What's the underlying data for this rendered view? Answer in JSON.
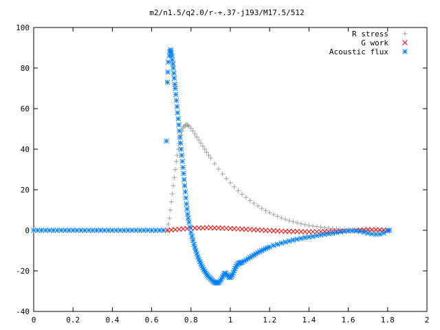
{
  "chart_data": {
    "type": "scatter",
    "title": "m2/n1.5/q2.0/r-+.37-j193/M17.5/512",
    "xlabel": "",
    "ylabel": "",
    "xlim": [
      0,
      2
    ],
    "ylim": [
      -40,
      100
    ],
    "xticks": [
      0,
      0.2,
      0.4,
      0.6,
      0.8,
      1,
      1.2,
      1.4,
      1.6,
      1.8,
      2
    ],
    "xtick_labels": [
      "0",
      "0.2",
      "0.4",
      "0.6",
      "0.8",
      "1",
      "1.2",
      "1.4",
      "1.6",
      "1.8",
      "2"
    ],
    "yticks": [
      -40,
      -20,
      0,
      20,
      40,
      60,
      80,
      100
    ],
    "ytick_labels": [
      "-40",
      "-20",
      "0",
      "20",
      "40",
      "60",
      "80",
      "100"
    ],
    "grid": false,
    "legend_position": "top-right",
    "series": [
      {
        "name": "R stress",
        "marker": "plus",
        "color": "#a0a0a0",
        "points": [
          [
            0.68,
            0
          ],
          [
            0.685,
            3
          ],
          [
            0.69,
            6
          ],
          [
            0.695,
            10
          ],
          [
            0.7,
            14
          ],
          [
            0.705,
            18
          ],
          [
            0.71,
            22
          ],
          [
            0.715,
            26
          ],
          [
            0.72,
            30
          ],
          [
            0.725,
            34
          ],
          [
            0.73,
            37
          ],
          [
            0.735,
            40
          ],
          [
            0.74,
            43
          ],
          [
            0.745,
            45
          ],
          [
            0.75,
            47
          ],
          [
            0.755,
            49
          ],
          [
            0.76,
            50.5
          ],
          [
            0.765,
            51.3
          ],
          [
            0.77,
            51.8
          ],
          [
            0.775,
            52
          ],
          [
            0.78,
            52
          ],
          [
            0.785,
            51.8
          ],
          [
            0.79,
            51.3
          ],
          [
            0.8,
            50.3
          ],
          [
            0.81,
            49
          ],
          [
            0.82,
            47.5
          ],
          [
            0.83,
            46
          ],
          [
            0.84,
            44.5
          ],
          [
            0.85,
            43
          ],
          [
            0.86,
            41.5
          ],
          [
            0.87,
            40
          ],
          [
            0.88,
            38.5
          ],
          [
            0.89,
            37
          ],
          [
            0.9,
            35.6
          ],
          [
            0.92,
            32.8
          ],
          [
            0.94,
            30.2
          ],
          [
            0.96,
            27.8
          ],
          [
            0.98,
            25.5
          ],
          [
            1.0,
            23.4
          ],
          [
            1.02,
            21.4
          ],
          [
            1.04,
            19.5
          ],
          [
            1.06,
            17.8
          ],
          [
            1.08,
            16.2
          ],
          [
            1.1,
            14.7
          ],
          [
            1.12,
            13.3
          ],
          [
            1.14,
            12
          ],
          [
            1.16,
            10.8
          ],
          [
            1.18,
            9.7
          ],
          [
            1.2,
            8.7
          ],
          [
            1.22,
            7.8
          ],
          [
            1.24,
            6.9
          ],
          [
            1.26,
            6.1
          ],
          [
            1.28,
            5.4
          ],
          [
            1.3,
            4.8
          ],
          [
            1.32,
            4.2
          ],
          [
            1.34,
            3.7
          ],
          [
            1.36,
            3.2
          ],
          [
            1.38,
            2.8
          ],
          [
            1.4,
            2.4
          ],
          [
            1.42,
            2.1
          ],
          [
            1.44,
            1.8
          ],
          [
            1.46,
            1.6
          ],
          [
            1.48,
            1.3
          ],
          [
            1.5,
            1.1
          ],
          [
            1.52,
            0.9
          ],
          [
            1.54,
            0.8
          ],
          [
            1.56,
            0.6
          ],
          [
            1.58,
            0.5
          ],
          [
            1.6,
            0.4
          ],
          [
            1.62,
            0.3
          ],
          [
            1.64,
            0.2
          ],
          [
            1.66,
            0.15
          ],
          [
            1.68,
            0.1
          ],
          [
            1.7,
            0.05
          ],
          [
            1.72,
            0.03
          ],
          [
            1.74,
            0.02
          ],
          [
            1.76,
            0.01
          ],
          [
            1.78,
            0
          ],
          [
            1.8,
            0
          ]
        ]
      },
      {
        "name": "G work",
        "marker": "cross",
        "color": "#ff0000",
        "points": [
          [
            0.68,
            0
          ],
          [
            0.7,
            0.2
          ],
          [
            0.72,
            0.4
          ],
          [
            0.74,
            0.5
          ],
          [
            0.76,
            0.7
          ],
          [
            0.78,
            0.9
          ],
          [
            0.8,
            1.0
          ],
          [
            0.82,
            1.1
          ],
          [
            0.84,
            1.2
          ],
          [
            0.86,
            1.2
          ],
          [
            0.88,
            1.3
          ],
          [
            0.9,
            1.3
          ],
          [
            0.92,
            1.2
          ],
          [
            0.94,
            1.2
          ],
          [
            0.96,
            1.1
          ],
          [
            0.98,
            1.0
          ],
          [
            1.0,
            0.9
          ],
          [
            1.02,
            0.8
          ],
          [
            1.04,
            0.7
          ],
          [
            1.06,
            0.6
          ],
          [
            1.08,
            0.5
          ],
          [
            1.1,
            0.4
          ],
          [
            1.12,
            0.3
          ],
          [
            1.14,
            0.2
          ],
          [
            1.16,
            0.1
          ],
          [
            1.18,
            0
          ],
          [
            1.2,
            -0.1
          ],
          [
            1.22,
            -0.2
          ],
          [
            1.24,
            -0.3
          ],
          [
            1.26,
            -0.4
          ],
          [
            1.28,
            -0.5
          ],
          [
            1.3,
            -0.5
          ],
          [
            1.32,
            -0.6
          ],
          [
            1.34,
            -0.6
          ],
          [
            1.36,
            -0.7
          ],
          [
            1.38,
            -0.7
          ],
          [
            1.4,
            -0.7
          ],
          [
            1.42,
            -0.7
          ],
          [
            1.44,
            -0.7
          ],
          [
            1.46,
            -0.7
          ],
          [
            1.48,
            -0.6
          ],
          [
            1.5,
            -0.6
          ],
          [
            1.52,
            -0.5
          ],
          [
            1.54,
            -0.5
          ],
          [
            1.56,
            -0.4
          ],
          [
            1.58,
            -0.3
          ],
          [
            1.6,
            -0.2
          ],
          [
            1.62,
            -0.1
          ],
          [
            1.64,
            0
          ],
          [
            1.66,
            0.1
          ],
          [
            1.68,
            0.2
          ],
          [
            1.7,
            0.3
          ],
          [
            1.72,
            0.3
          ],
          [
            1.74,
            0.3
          ],
          [
            1.76,
            0.2
          ],
          [
            1.78,
            0.1
          ],
          [
            1.8,
            0
          ]
        ]
      },
      {
        "name": "Acoustic flux",
        "marker": "star",
        "color": "#0080ff",
        "points": [
          [
            0.0,
            0
          ],
          [
            0.02,
            0
          ],
          [
            0.04,
            0
          ],
          [
            0.06,
            0
          ],
          [
            0.08,
            0
          ],
          [
            0.1,
            0
          ],
          [
            0.12,
            0
          ],
          [
            0.14,
            0
          ],
          [
            0.16,
            0
          ],
          [
            0.18,
            0
          ],
          [
            0.2,
            0
          ],
          [
            0.22,
            0
          ],
          [
            0.24,
            0
          ],
          [
            0.26,
            0
          ],
          [
            0.28,
            0
          ],
          [
            0.3,
            0
          ],
          [
            0.32,
            0
          ],
          [
            0.34,
            0
          ],
          [
            0.36,
            0
          ],
          [
            0.38,
            0
          ],
          [
            0.4,
            0
          ],
          [
            0.42,
            0
          ],
          [
            0.44,
            0
          ],
          [
            0.46,
            0
          ],
          [
            0.48,
            0
          ],
          [
            0.5,
            0
          ],
          [
            0.52,
            0
          ],
          [
            0.54,
            0
          ],
          [
            0.56,
            0
          ],
          [
            0.58,
            0
          ],
          [
            0.6,
            0
          ],
          [
            0.62,
            0
          ],
          [
            0.64,
            0
          ],
          [
            0.66,
            0
          ],
          [
            0.675,
            44
          ],
          [
            0.68,
            73
          ],
          [
            0.682,
            78
          ],
          [
            0.685,
            83
          ],
          [
            0.69,
            86
          ],
          [
            0.692,
            88
          ],
          [
            0.695,
            89
          ],
          [
            0.698,
            88.5
          ],
          [
            0.7,
            87.5
          ],
          [
            0.703,
            86
          ],
          [
            0.705,
            84
          ],
          [
            0.708,
            82
          ],
          [
            0.71,
            80
          ],
          [
            0.713,
            77.5
          ],
          [
            0.715,
            75
          ],
          [
            0.718,
            72
          ],
          [
            0.72,
            70
          ],
          [
            0.723,
            67
          ],
          [
            0.726,
            64
          ],
          [
            0.729,
            61
          ],
          [
            0.732,
            58
          ],
          [
            0.735,
            55
          ],
          [
            0.738,
            52
          ],
          [
            0.741,
            49
          ],
          [
            0.744,
            46
          ],
          [
            0.747,
            43
          ],
          [
            0.75,
            40
          ],
          [
            0.753,
            37
          ],
          [
            0.756,
            34
          ],
          [
            0.759,
            31
          ],
          [
            0.762,
            28
          ],
          [
            0.765,
            25
          ],
          [
            0.768,
            22
          ],
          [
            0.771,
            19
          ],
          [
            0.774,
            16
          ],
          [
            0.777,
            13
          ],
          [
            0.78,
            10.5
          ],
          [
            0.783,
            8
          ],
          [
            0.786,
            6
          ],
          [
            0.79,
            4
          ],
          [
            0.795,
            1.5
          ],
          [
            0.8,
            -1
          ],
          [
            0.805,
            -3
          ],
          [
            0.81,
            -5
          ],
          [
            0.815,
            -7
          ],
          [
            0.82,
            -8.5
          ],
          [
            0.825,
            -10
          ],
          [
            0.83,
            -11.5
          ],
          [
            0.835,
            -13
          ],
          [
            0.84,
            -14.3
          ],
          [
            0.845,
            -15.5
          ],
          [
            0.85,
            -16.6
          ],
          [
            0.855,
            -17.6
          ],
          [
            0.86,
            -18.5
          ],
          [
            0.865,
            -19.4
          ],
          [
            0.87,
            -20.2
          ],
          [
            0.875,
            -21
          ],
          [
            0.88,
            -21.7
          ],
          [
            0.885,
            -22.3
          ],
          [
            0.89,
            -22.9
          ],
          [
            0.895,
            -23.4
          ],
          [
            0.9,
            -23.9
          ],
          [
            0.905,
            -24.4
          ],
          [
            0.91,
            -24.9
          ],
          [
            0.915,
            -25.3
          ],
          [
            0.92,
            -25.6
          ],
          [
            0.925,
            -25.8
          ],
          [
            0.93,
            -26
          ],
          [
            0.935,
            -26
          ],
          [
            0.94,
            -25.8
          ],
          [
            0.945,
            -25.4
          ],
          [
            0.95,
            -24.8
          ],
          [
            0.955,
            -24
          ],
          [
            0.96,
            -23
          ],
          [
            0.965,
            -22
          ],
          [
            0.97,
            -21.3
          ],
          [
            0.975,
            -21.2
          ],
          [
            0.98,
            -21.6
          ],
          [
            0.985,
            -22.2
          ],
          [
            0.99,
            -22.8
          ],
          [
            0.995,
            -23.2
          ],
          [
            1.0,
            -23.2
          ],
          [
            1.005,
            -22.8
          ],
          [
            1.01,
            -22
          ],
          [
            1.015,
            -21
          ],
          [
            1.02,
            -19.9
          ],
          [
            1.025,
            -18.8
          ],
          [
            1.03,
            -17.8
          ],
          [
            1.035,
            -17
          ],
          [
            1.04,
            -16.5
          ],
          [
            1.045,
            -16.2
          ],
          [
            1.05,
            -16.1
          ],
          [
            1.055,
            -15.9
          ],
          [
            1.06,
            -15.7
          ],
          [
            1.07,
            -15.2
          ],
          [
            1.08,
            -14.6
          ],
          [
            1.09,
            -14
          ],
          [
            1.1,
            -13.4
          ],
          [
            1.11,
            -12.8
          ],
          [
            1.12,
            -12.2
          ],
          [
            1.13,
            -11.6
          ],
          [
            1.14,
            -11
          ],
          [
            1.15,
            -10.5
          ],
          [
            1.16,
            -10
          ],
          [
            1.17,
            -9.5
          ],
          [
            1.18,
            -9
          ],
          [
            1.19,
            -8.6
          ],
          [
            1.2,
            -8.2
          ],
          [
            1.22,
            -7.5
          ],
          [
            1.24,
            -6.9
          ],
          [
            1.26,
            -6.3
          ],
          [
            1.28,
            -5.8
          ],
          [
            1.3,
            -5.3
          ],
          [
            1.32,
            -4.8
          ],
          [
            1.34,
            -4.4
          ],
          [
            1.36,
            -4
          ],
          [
            1.38,
            -3.6
          ],
          [
            1.4,
            -3.3
          ],
          [
            1.42,
            -3
          ],
          [
            1.44,
            -2.6
          ],
          [
            1.46,
            -2.3
          ],
          [
            1.48,
            -2
          ],
          [
            1.5,
            -1.7
          ],
          [
            1.52,
            -1.4
          ],
          [
            1.54,
            -1.1
          ],
          [
            1.56,
            -0.8
          ],
          [
            1.58,
            -0.5
          ],
          [
            1.6,
            -0.3
          ],
          [
            1.62,
            -0.2
          ],
          [
            1.64,
            -0.3
          ],
          [
            1.66,
            -0.5
          ],
          [
            1.68,
            -0.9
          ],
          [
            1.7,
            -1.4
          ],
          [
            1.72,
            -1.8
          ],
          [
            1.74,
            -2
          ],
          [
            1.76,
            -1.9
          ],
          [
            1.78,
            -1.3
          ],
          [
            1.8,
            -0.3
          ],
          [
            1.81,
            0
          ]
        ]
      }
    ]
  }
}
